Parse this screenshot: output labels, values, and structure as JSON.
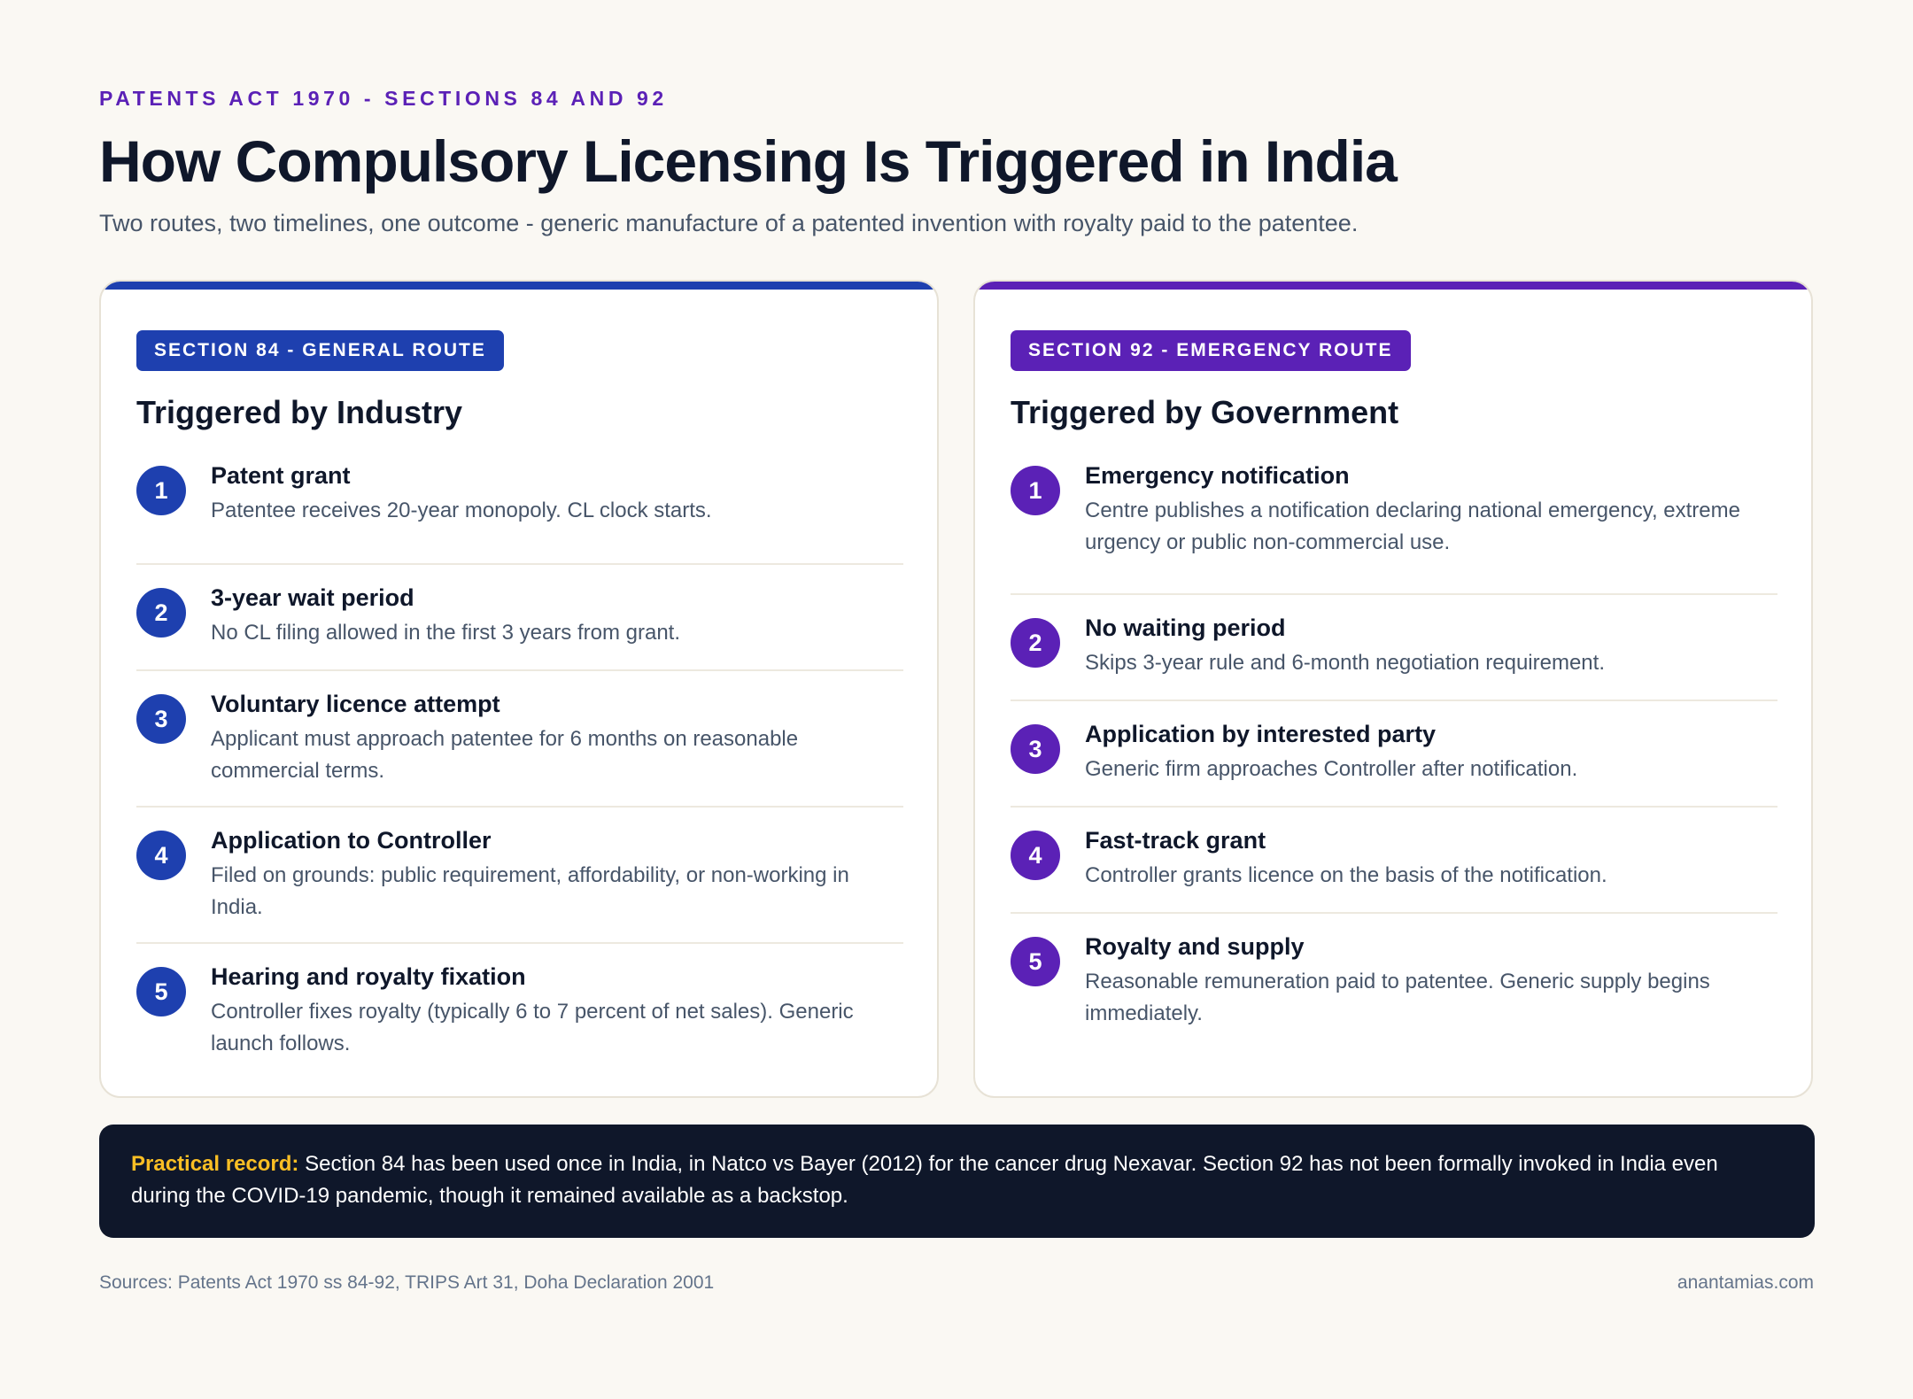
{
  "header": {
    "eyebrow": "PATENTS ACT 1970 - SECTIONS 84 AND 92",
    "title": "How Compulsory Licensing Is Triggered in India",
    "subtitle": "Two routes, two timelines, one outcome - generic manufacture of a patented invention with royalty paid to the patentee."
  },
  "colors": {
    "general_route": "#1e40af",
    "emergency_route": "#5b21b6",
    "note_label": "#fbbf24",
    "note_background": "#0f172a"
  },
  "left_card": {
    "badge": "SECTION 84 - GENERAL ROUTE",
    "heading": "Triggered by Industry",
    "steps": [
      {
        "num": "1",
        "title": "Patent grant",
        "desc": "Patentee receives 20-year monopoly. CL clock starts."
      },
      {
        "num": "2",
        "title": "3-year wait period",
        "desc": "No CL filing allowed in the first 3 years from grant."
      },
      {
        "num": "3",
        "title": "Voluntary licence attempt",
        "desc": "Applicant must approach patentee for 6 months on reasonable commercial terms."
      },
      {
        "num": "4",
        "title": "Application to Controller",
        "desc": "Filed on grounds: public requirement, affordability, or non-working in India."
      },
      {
        "num": "5",
        "title": "Hearing and royalty fixation",
        "desc": "Controller fixes royalty (typically 6 to 7 percent of net sales). Generic launch follows."
      }
    ]
  },
  "right_card": {
    "badge": "SECTION 92 - EMERGENCY ROUTE",
    "heading": "Triggered by Government",
    "steps": [
      {
        "num": "1",
        "title": "Emergency notification",
        "desc": "Centre publishes a notification declaring national emergency, extreme urgency or public non-commercial use."
      },
      {
        "num": "2",
        "title": "No waiting period",
        "desc": "Skips 3-year rule and 6-month negotiation requirement."
      },
      {
        "num": "3",
        "title": "Application by interested party",
        "desc": "Generic firm approaches Controller after notification."
      },
      {
        "num": "4",
        "title": "Fast-track grant",
        "desc": "Controller grants licence on the basis of the notification."
      },
      {
        "num": "5",
        "title": "Royalty and supply",
        "desc": "Reasonable remuneration paid to patentee. Generic supply begins immediately."
      }
    ]
  },
  "note": {
    "label": "Practical record:",
    "text": " Section 84 has been used once in India, in Natco vs Bayer (2012) for the cancer drug Nexavar. Section 92 has not been formally invoked in India even during the COVID-19 pandemic, though it remained available as a backstop."
  },
  "footer": {
    "sources": "Sources: Patents Act 1970 ss 84-92, TRIPS Art 31, Doha Declaration 2001",
    "site": "anantamias.com"
  }
}
